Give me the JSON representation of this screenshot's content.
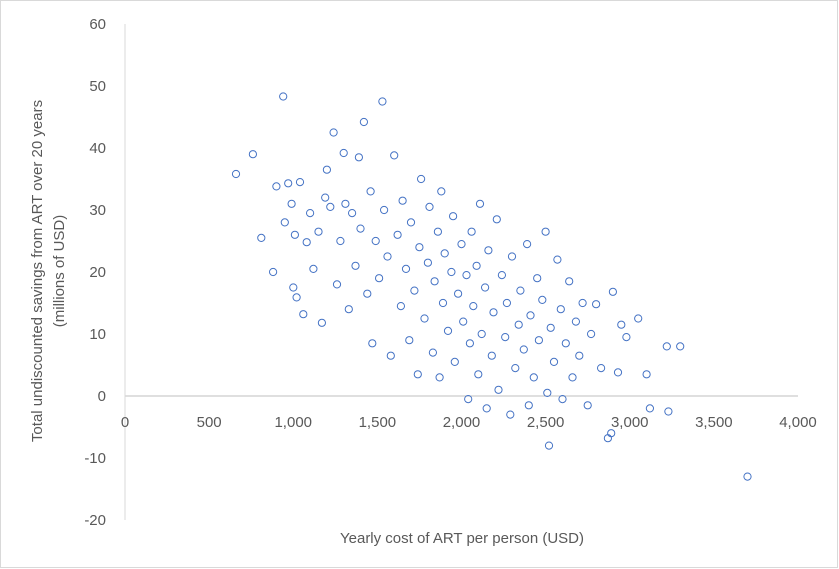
{
  "chart_data": {
    "type": "scatter",
    "title": "",
    "xlabel": "Yearly cost of ART per person (USD)",
    "ylabel_lines": [
      "Total undiscounted savings from ART over 20 years",
      "(millions of USD)"
    ],
    "xlim": [
      0,
      4000
    ],
    "ylim": [
      -20,
      60
    ],
    "x_ticks": [
      0,
      500,
      1000,
      1500,
      2000,
      2500,
      3000,
      3500,
      4000
    ],
    "x_tick_labels": [
      "0",
      "500",
      "1,000",
      "1,500",
      "2,000",
      "2,500",
      "3,000",
      "3,500",
      "4,000"
    ],
    "y_ticks": [
      -20,
      -10,
      0,
      10,
      20,
      30,
      40,
      50,
      60
    ],
    "y_tick_labels": [
      "-20",
      "-10",
      "0",
      "10",
      "20",
      "30",
      "40",
      "50",
      "60"
    ],
    "gridlines": false,
    "marker": "hollow-circle",
    "marker_color": "#4472c4",
    "series": [
      {
        "name": "",
        "points": [
          [
            660,
            35.8
          ],
          [
            760,
            39.0
          ],
          [
            810,
            25.5
          ],
          [
            880,
            20.0
          ],
          [
            900,
            33.8
          ],
          [
            940,
            48.3
          ],
          [
            950,
            28.0
          ],
          [
            970,
            34.3
          ],
          [
            990,
            31.0
          ],
          [
            1000,
            17.5
          ],
          [
            1010,
            26.0
          ],
          [
            1020,
            15.9
          ],
          [
            1040,
            34.5
          ],
          [
            1060,
            13.2
          ],
          [
            1080,
            24.8
          ],
          [
            1100,
            29.5
          ],
          [
            1120,
            20.5
          ],
          [
            1150,
            26.5
          ],
          [
            1170,
            11.8
          ],
          [
            1190,
            32.0
          ],
          [
            1200,
            36.5
          ],
          [
            1220,
            30.5
          ],
          [
            1240,
            42.5
          ],
          [
            1260,
            18.0
          ],
          [
            1280,
            25.0
          ],
          [
            1300,
            39.2
          ],
          [
            1310,
            31.0
          ],
          [
            1330,
            14.0
          ],
          [
            1350,
            29.5
          ],
          [
            1370,
            21.0
          ],
          [
            1390,
            38.5
          ],
          [
            1400,
            27.0
          ],
          [
            1420,
            44.2
          ],
          [
            1440,
            16.5
          ],
          [
            1460,
            33.0
          ],
          [
            1470,
            8.5
          ],
          [
            1490,
            25.0
          ],
          [
            1510,
            19.0
          ],
          [
            1530,
            47.5
          ],
          [
            1540,
            30.0
          ],
          [
            1560,
            22.5
          ],
          [
            1580,
            6.5
          ],
          [
            1600,
            38.8
          ],
          [
            1620,
            26.0
          ],
          [
            1640,
            14.5
          ],
          [
            1650,
            31.5
          ],
          [
            1670,
            20.5
          ],
          [
            1690,
            9.0
          ],
          [
            1700,
            28.0
          ],
          [
            1720,
            17.0
          ],
          [
            1740,
            3.5
          ],
          [
            1750,
            24.0
          ],
          [
            1760,
            35.0
          ],
          [
            1780,
            12.5
          ],
          [
            1800,
            21.5
          ],
          [
            1810,
            30.5
          ],
          [
            1830,
            7.0
          ],
          [
            1840,
            18.5
          ],
          [
            1860,
            26.5
          ],
          [
            1870,
            3.0
          ],
          [
            1880,
            33.0
          ],
          [
            1890,
            15.0
          ],
          [
            1900,
            23.0
          ],
          [
            1920,
            10.5
          ],
          [
            1940,
            20.0
          ],
          [
            1950,
            29.0
          ],
          [
            1960,
            5.5
          ],
          [
            1980,
            16.5
          ],
          [
            2000,
            24.5
          ],
          [
            2010,
            12.0
          ],
          [
            2030,
            19.5
          ],
          [
            2040,
            -0.5
          ],
          [
            2050,
            8.5
          ],
          [
            2060,
            26.5
          ],
          [
            2070,
            14.5
          ],
          [
            2090,
            21.0
          ],
          [
            2100,
            3.5
          ],
          [
            2110,
            31.0
          ],
          [
            2120,
            10.0
          ],
          [
            2140,
            17.5
          ],
          [
            2150,
            -2.0
          ],
          [
            2160,
            23.5
          ],
          [
            2180,
            6.5
          ],
          [
            2190,
            13.5
          ],
          [
            2210,
            28.5
          ],
          [
            2220,
            1.0
          ],
          [
            2240,
            19.5
          ],
          [
            2260,
            9.5
          ],
          [
            2270,
            15.0
          ],
          [
            2290,
            -3.0
          ],
          [
            2300,
            22.5
          ],
          [
            2320,
            4.5
          ],
          [
            2340,
            11.5
          ],
          [
            2350,
            17.0
          ],
          [
            2370,
            7.5
          ],
          [
            2390,
            24.5
          ],
          [
            2400,
            -1.5
          ],
          [
            2410,
            13.0
          ],
          [
            2430,
            3.0
          ],
          [
            2450,
            19.0
          ],
          [
            2460,
            9.0
          ],
          [
            2480,
            15.5
          ],
          [
            2500,
            26.5
          ],
          [
            2510,
            0.5
          ],
          [
            2520,
            -8.0
          ],
          [
            2530,
            11.0
          ],
          [
            2550,
            5.5
          ],
          [
            2570,
            22.0
          ],
          [
            2590,
            14.0
          ],
          [
            2600,
            -0.5
          ],
          [
            2620,
            8.5
          ],
          [
            2640,
            18.5
          ],
          [
            2660,
            3.0
          ],
          [
            2680,
            12.0
          ],
          [
            2700,
            6.5
          ],
          [
            2720,
            15.0
          ],
          [
            2750,
            -1.5
          ],
          [
            2770,
            10.0
          ],
          [
            2800,
            14.8
          ],
          [
            2830,
            4.5
          ],
          [
            2870,
            -6.8
          ],
          [
            2890,
            -6.0
          ],
          [
            2900,
            16.8
          ],
          [
            2930,
            3.8
          ],
          [
            2950,
            11.5
          ],
          [
            2980,
            9.5
          ],
          [
            3050,
            12.5
          ],
          [
            3100,
            3.5
          ],
          [
            3120,
            -2.0
          ],
          [
            3220,
            8.0
          ],
          [
            3230,
            -2.5
          ],
          [
            3300,
            8.0
          ],
          [
            3700,
            -13.0
          ]
        ]
      }
    ]
  }
}
